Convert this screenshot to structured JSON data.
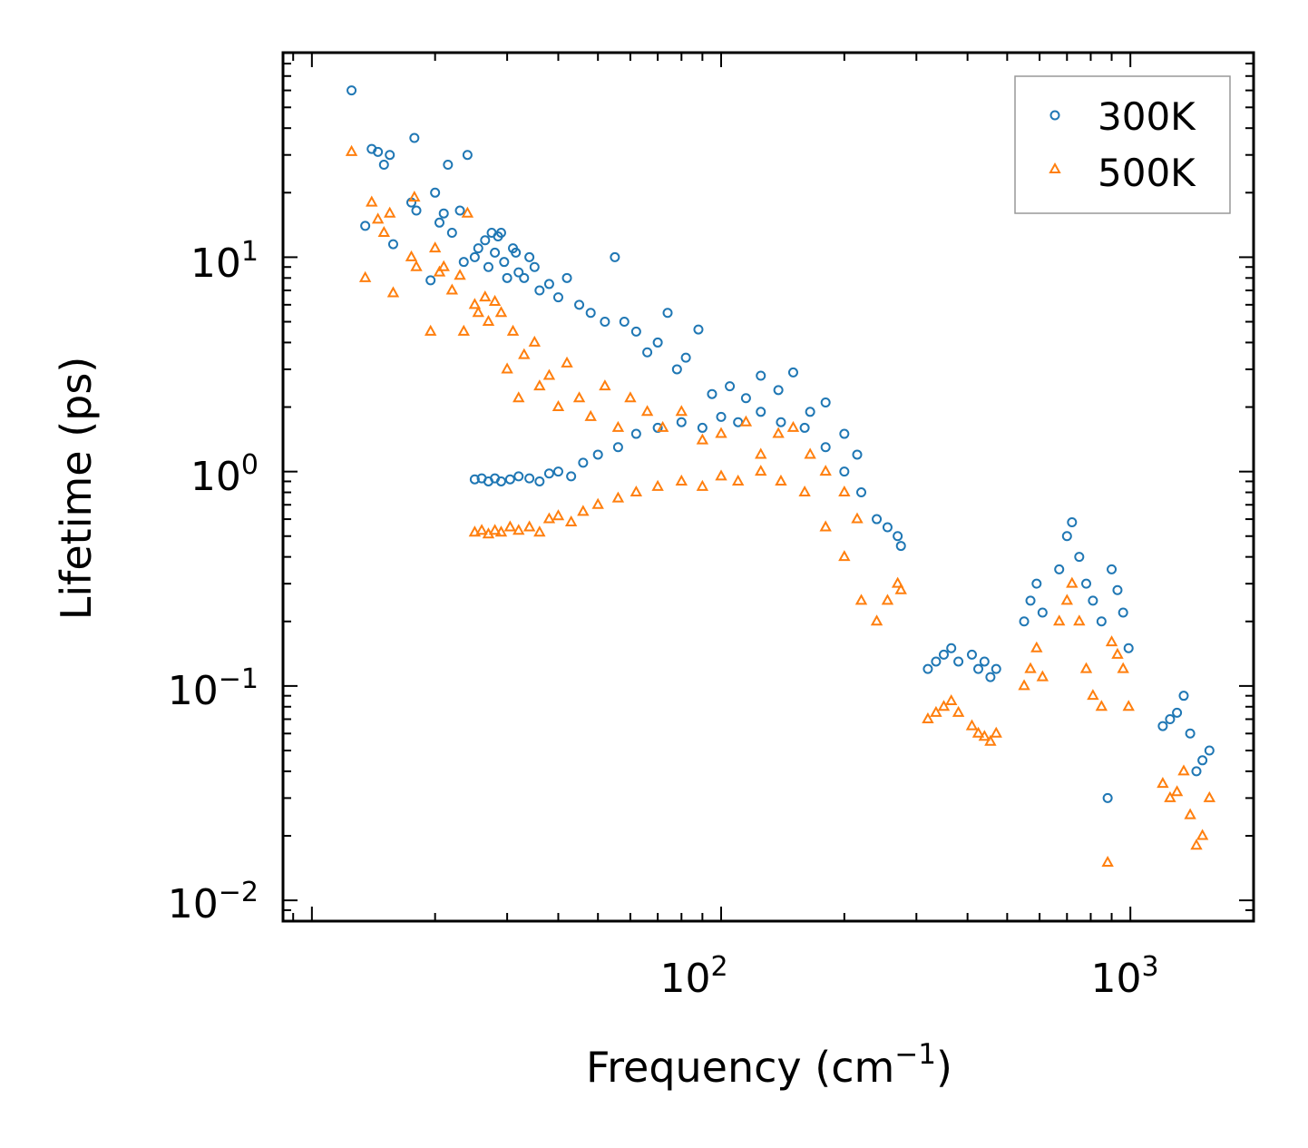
{
  "chart_data": {
    "type": "scatter",
    "title": "",
    "xlabel": "Frequency (cm",
    "xlabel_sup": "−1",
    "xlabel_tail": ")",
    "ylabel": "Lifetime (ps)",
    "xscale": "log",
    "yscale": "log",
    "xlim": [
      8.5,
      2000
    ],
    "ylim": [
      0.008,
      90
    ],
    "x_ticks": [
      {
        "value": 100,
        "base": "10",
        "exp": "2"
      },
      {
        "value": 1000,
        "base": "10",
        "exp": "3"
      }
    ],
    "y_ticks": [
      {
        "value": 10,
        "base": "10",
        "exp": "1"
      },
      {
        "value": 1,
        "base": "10",
        "exp": "0"
      },
      {
        "value": 0.1,
        "base": "10",
        "exp": "−1"
      },
      {
        "value": 0.01,
        "base": "10",
        "exp": "−2"
      }
    ],
    "legend_position": "top-right",
    "series": [
      {
        "name": "300K",
        "marker": "circle",
        "color": "#1f77b4",
        "points": [
          [
            12.5,
            60
          ],
          [
            13.5,
            14
          ],
          [
            14,
            32
          ],
          [
            14.5,
            31
          ],
          [
            15,
            27
          ],
          [
            15.5,
            30
          ],
          [
            15.8,
            11.5
          ],
          [
            17.5,
            18
          ],
          [
            17.8,
            36
          ],
          [
            18,
            16.5
          ],
          [
            19.5,
            7.8
          ],
          [
            20,
            20
          ],
          [
            20.5,
            14.5
          ],
          [
            21,
            16
          ],
          [
            22,
            13
          ],
          [
            21.5,
            27
          ],
          [
            23,
            16.5
          ],
          [
            23.5,
            9.5
          ],
          [
            24,
            30
          ],
          [
            25,
            10
          ],
          [
            25.5,
            11
          ],
          [
            26.5,
            12
          ],
          [
            27,
            9
          ],
          [
            27.5,
            13
          ],
          [
            28,
            10.5
          ],
          [
            28.5,
            12.5
          ],
          [
            29,
            13
          ],
          [
            29.5,
            9.5
          ],
          [
            30,
            8
          ],
          [
            31,
            11
          ],
          [
            31.5,
            10.5
          ],
          [
            32,
            8.5
          ],
          [
            33,
            8
          ],
          [
            34,
            10
          ],
          [
            35,
            9
          ],
          [
            36,
            7
          ],
          [
            38,
            7.5
          ],
          [
            40,
            6.5
          ],
          [
            42,
            8
          ],
          [
            45,
            6
          ],
          [
            48,
            5.5
          ],
          [
            52,
            5
          ],
          [
            55,
            10
          ],
          [
            58,
            5
          ],
          [
            62,
            4.5
          ],
          [
            66,
            3.6
          ],
          [
            70,
            4
          ],
          [
            74,
            5.5
          ],
          [
            78,
            3
          ],
          [
            82,
            3.4
          ],
          [
            88,
            4.6
          ],
          [
            95,
            2.3
          ],
          [
            105,
            2.5
          ],
          [
            115,
            2.2
          ],
          [
            125,
            2.8
          ],
          [
            138,
            2.4
          ],
          [
            150,
            2.9
          ],
          [
            165,
            1.9
          ],
          [
            180,
            2.1
          ],
          [
            200,
            1.5
          ],
          [
            215,
            1.2
          ],
          [
            25,
            0.92
          ],
          [
            26,
            0.93
          ],
          [
            27,
            0.9
          ],
          [
            28,
            0.93
          ],
          [
            29,
            0.9
          ],
          [
            30.5,
            0.92
          ],
          [
            32,
            0.95
          ],
          [
            34,
            0.93
          ],
          [
            36,
            0.9
          ],
          [
            38,
            0.98
          ],
          [
            40,
            1.0
          ],
          [
            43,
            0.95
          ],
          [
            46,
            1.1
          ],
          [
            50,
            1.2
          ],
          [
            56,
            1.3
          ],
          [
            62,
            1.5
          ],
          [
            70,
            1.6
          ],
          [
            80,
            1.7
          ],
          [
            90,
            1.6
          ],
          [
            100,
            1.8
          ],
          [
            110,
            1.7
          ],
          [
            125,
            1.9
          ],
          [
            140,
            1.7
          ],
          [
            160,
            1.6
          ],
          [
            180,
            1.3
          ],
          [
            200,
            1.0
          ],
          [
            220,
            0.8
          ],
          [
            240,
            0.6
          ],
          [
            255,
            0.55
          ],
          [
            270,
            0.5
          ],
          [
            275,
            0.45
          ],
          [
            320,
            0.12
          ],
          [
            335,
            0.13
          ],
          [
            350,
            0.14
          ],
          [
            365,
            0.15
          ],
          [
            380,
            0.13
          ],
          [
            410,
            0.14
          ],
          [
            425,
            0.12
          ],
          [
            440,
            0.13
          ],
          [
            455,
            0.11
          ],
          [
            470,
            0.12
          ],
          [
            550,
            0.2
          ],
          [
            570,
            0.25
          ],
          [
            590,
            0.3
          ],
          [
            610,
            0.22
          ],
          [
            670,
            0.35
          ],
          [
            700,
            0.5
          ],
          [
            720,
            0.58
          ],
          [
            750,
            0.4
          ],
          [
            780,
            0.3
          ],
          [
            810,
            0.25
          ],
          [
            850,
            0.2
          ],
          [
            880,
            0.03
          ],
          [
            900,
            0.35
          ],
          [
            930,
            0.28
          ],
          [
            960,
            0.22
          ],
          [
            990,
            0.15
          ],
          [
            1200,
            0.065
          ],
          [
            1250,
            0.07
          ],
          [
            1300,
            0.075
          ],
          [
            1350,
            0.09
          ],
          [
            1400,
            0.06
          ],
          [
            1450,
            0.04
          ],
          [
            1500,
            0.045
          ],
          [
            1560,
            0.05
          ]
        ]
      },
      {
        "name": "500K",
        "marker": "triangle",
        "color": "#ff7f0e",
        "points": [
          [
            12.5,
            31
          ],
          [
            13.5,
            8
          ],
          [
            14,
            18
          ],
          [
            14.5,
            15
          ],
          [
            15,
            13
          ],
          [
            15.5,
            16
          ],
          [
            15.8,
            6.8
          ],
          [
            17.5,
            10
          ],
          [
            17.8,
            19
          ],
          [
            18,
            9
          ],
          [
            19.5,
            4.5
          ],
          [
            20,
            11
          ],
          [
            20.5,
            8.5
          ],
          [
            21,
            9
          ],
          [
            22,
            7
          ],
          [
            23,
            8.2
          ],
          [
            23.5,
            4.5
          ],
          [
            24,
            16
          ],
          [
            25,
            6
          ],
          [
            25.5,
            5.5
          ],
          [
            26.5,
            6.5
          ],
          [
            27,
            5
          ],
          [
            28,
            6.2
          ],
          [
            29,
            5.5
          ],
          [
            30,
            3
          ],
          [
            31,
            4.5
          ],
          [
            32,
            2.2
          ],
          [
            33,
            3.5
          ],
          [
            35,
            4
          ],
          [
            36,
            2.5
          ],
          [
            38,
            2.8
          ],
          [
            40,
            2
          ],
          [
            42,
            3.2
          ],
          [
            45,
            2.2
          ],
          [
            48,
            1.8
          ],
          [
            52,
            2.5
          ],
          [
            56,
            1.6
          ],
          [
            60,
            2.2
          ],
          [
            66,
            1.9
          ],
          [
            72,
            1.6
          ],
          [
            80,
            1.9
          ],
          [
            90,
            1.4
          ],
          [
            100,
            1.5
          ],
          [
            115,
            1.7
          ],
          [
            125,
            1.2
          ],
          [
            138,
            1.5
          ],
          [
            150,
            1.6
          ],
          [
            165,
            1.2
          ],
          [
            180,
            1.0
          ],
          [
            200,
            0.8
          ],
          [
            215,
            0.6
          ],
          [
            25,
            0.52
          ],
          [
            26,
            0.53
          ],
          [
            27,
            0.51
          ],
          [
            28,
            0.53
          ],
          [
            29,
            0.52
          ],
          [
            30.5,
            0.55
          ],
          [
            32,
            0.53
          ],
          [
            34,
            0.55
          ],
          [
            36,
            0.52
          ],
          [
            38,
            0.6
          ],
          [
            40,
            0.62
          ],
          [
            43,
            0.58
          ],
          [
            46,
            0.65
          ],
          [
            50,
            0.7
          ],
          [
            56,
            0.75
          ],
          [
            62,
            0.8
          ],
          [
            70,
            0.85
          ],
          [
            80,
            0.9
          ],
          [
            90,
            0.85
          ],
          [
            100,
            0.95
          ],
          [
            110,
            0.9
          ],
          [
            125,
            1.0
          ],
          [
            140,
            0.9
          ],
          [
            160,
            0.8
          ],
          [
            180,
            0.55
          ],
          [
            200,
            0.4
          ],
          [
            220,
            0.25
          ],
          [
            240,
            0.2
          ],
          [
            255,
            0.25
          ],
          [
            270,
            0.3
          ],
          [
            275,
            0.28
          ],
          [
            320,
            0.07
          ],
          [
            335,
            0.075
          ],
          [
            350,
            0.08
          ],
          [
            365,
            0.085
          ],
          [
            380,
            0.075
          ],
          [
            410,
            0.065
          ],
          [
            425,
            0.06
          ],
          [
            440,
            0.058
          ],
          [
            455,
            0.055
          ],
          [
            470,
            0.06
          ],
          [
            550,
            0.1
          ],
          [
            570,
            0.12
          ],
          [
            590,
            0.15
          ],
          [
            610,
            0.11
          ],
          [
            670,
            0.2
          ],
          [
            700,
            0.25
          ],
          [
            720,
            0.3
          ],
          [
            750,
            0.2
          ],
          [
            780,
            0.12
          ],
          [
            810,
            0.09
          ],
          [
            850,
            0.08
          ],
          [
            880,
            0.015
          ],
          [
            900,
            0.16
          ],
          [
            930,
            0.14
          ],
          [
            960,
            0.12
          ],
          [
            990,
            0.08
          ],
          [
            1200,
            0.035
          ],
          [
            1250,
            0.03
          ],
          [
            1300,
            0.032
          ],
          [
            1350,
            0.04
          ],
          [
            1400,
            0.025
          ],
          [
            1450,
            0.018
          ],
          [
            1500,
            0.02
          ],
          [
            1560,
            0.03
          ]
        ]
      }
    ]
  }
}
